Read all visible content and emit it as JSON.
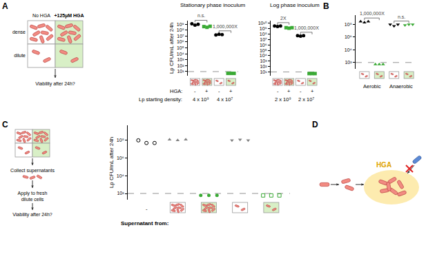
{
  "panel_labels": [
    "A",
    "B",
    "C",
    "D"
  ],
  "schematics": {
    "A": {
      "columns": [
        "No HGA",
        "+125µM HGA"
      ],
      "rows": [
        "dense",
        "dilute"
      ],
      "caption": "Viability after 24h?"
    },
    "C": {
      "steps": [
        [
          "Collect supernatants"
        ],
        [
          "Apply to fresh",
          "dilute cells"
        ],
        [
          "Viability after 24h?"
        ]
      ]
    },
    "D": {
      "label": "HGA"
    }
  },
  "chart_data": [
    {
      "type": "scatter",
      "title": "Stationary phase inoculum",
      "y_label": "Lp CFU/mL after 24h",
      "log": "y",
      "grid": false,
      "tick_labels": "y",
      "ylim": [
        2,
        4000000000
      ],
      "yticks": [
        {
          "value": 10,
          "label": "10¹"
        },
        {
          "value": 100,
          "label": "10²"
        },
        {
          "value": 1000,
          "label": "10³"
        },
        {
          "value": 10000,
          "label": "10⁴"
        },
        {
          "value": 100000,
          "label": "10⁵"
        },
        {
          "value": 1000000,
          "label": "10⁶"
        },
        {
          "value": 10000000,
          "label": "10⁷"
        },
        {
          "value": 100000000,
          "label": "10⁸"
        },
        {
          "value": 1000000000,
          "label": "10⁹"
        }
      ],
      "detection_limit": 10,
      "groups": [
        {
          "values": [
            1200000000,
            700000000,
            1000000000
          ],
          "color": "#000000",
          "marker": "circle",
          "icon": {
            "dense": true,
            "hga": false
          }
        },
        {
          "values": [
            400000000,
            300000000,
            450000000
          ],
          "color": "#3aaa35",
          "marker": "square",
          "icon": {
            "dense": true,
            "hga": true
          }
        },
        {
          "values": [
            15000000,
            20000000,
            18000000
          ],
          "color": "#000000",
          "marker": "circle",
          "icon": {
            "dense": false,
            "hga": false
          }
        },
        {
          "values": [
            5,
            5,
            5
          ],
          "color": "#3aaa35",
          "marker": "square",
          "icon": {
            "dense": false,
            "hga": true
          }
        }
      ],
      "x_rows": [
        {
          "label": "HGA:",
          "values": [
            "-",
            "+",
            "-",
            "+"
          ]
        },
        {
          "label": "Lp starting density:",
          "values": [
            "4 x 10⁹",
            "4 x 10⁷"
          ]
        }
      ],
      "comparisons": [
        {
          "groups": [
            0,
            1
          ],
          "label": "n.s."
        },
        {
          "groups": [
            2,
            3
          ],
          "label": "1,000,000X"
        }
      ]
    },
    {
      "type": "scatter",
      "title": "Log phase inoculum",
      "log": "y",
      "grid": false,
      "tick_labels": "y",
      "ylim": [
        2,
        30000000000
      ],
      "yticks": [
        {
          "value": 10,
          "label": "10¹"
        },
        {
          "value": 100,
          "label": "10²"
        },
        {
          "value": 1000,
          "label": "10³"
        },
        {
          "value": 10000,
          "label": "10⁴"
        },
        {
          "value": 100000,
          "label": "10⁵"
        },
        {
          "value": 1000000,
          "label": "10⁶"
        },
        {
          "value": 10000000,
          "label": "10⁷"
        },
        {
          "value": 100000000,
          "label": "10⁸"
        },
        {
          "value": 1000000000,
          "label": "10⁹"
        },
        {
          "value": 10000000000,
          "label": "10¹⁰"
        }
      ],
      "detection_limit": 10,
      "groups": [
        {
          "values": [
            3000000000,
            2500000000,
            3000000000
          ],
          "color": "#000000",
          "marker": "circle",
          "icon": {
            "dense": true,
            "hga": false
          }
        },
        {
          "values": [
            1500000000,
            1200000000,
            1500000000
          ],
          "color": "#3aaa35",
          "marker": "square",
          "icon": {
            "dense": true,
            "hga": true
          }
        },
        {
          "values": [
            50000000,
            40000000,
            50000000
          ],
          "color": "#000000",
          "marker": "circle",
          "icon": {
            "dense": false,
            "hga": false
          }
        },
        {
          "values": [
            5,
            5,
            5
          ],
          "color": "#3aaa35",
          "marker": "square",
          "icon": {
            "dense": false,
            "hga": true
          }
        }
      ],
      "x_rows": [
        {
          "values": [
            "-",
            "+",
            "-",
            "+"
          ]
        },
        {
          "values": [
            "2 x 10⁹",
            "2 x 10⁷"
          ]
        }
      ],
      "comparisons": [
        {
          "groups": [
            0,
            1
          ],
          "label": "2X"
        },
        {
          "groups": [
            2,
            3
          ],
          "label": "1,000,000X"
        }
      ]
    },
    {
      "type": "scatter",
      "log": "y",
      "grid": false,
      "tick_labels": "y",
      "ylim": [
        10,
        3000000000
      ],
      "yticks": [
        {
          "value": 100,
          "label": "10²"
        },
        {
          "value": 10000,
          "label": "10⁴"
        },
        {
          "value": 1000000,
          "label": "10⁶"
        },
        {
          "value": 100000000,
          "label": "10⁸"
        }
      ],
      "detection_limit": 100,
      "groups": [
        {
          "values": [
            300000000,
            200000000,
            300000000
          ],
          "color": "#000000",
          "marker": "triangle-up",
          "icon": {
            "dense": false,
            "hga": false
          }
        },
        {
          "values": [
            50,
            50,
            50
          ],
          "color": "#3aaa35",
          "marker": "triangle-up",
          "icon": {
            "dense": false,
            "hga": true
          }
        },
        {
          "values": [
            100000000,
            60000000,
            100000000
          ],
          "color": "#000000",
          "marker": "triangle-down",
          "icon": {
            "dense": false,
            "hga": false
          }
        },
        {
          "values": [
            80000000,
            100000000,
            100000000
          ],
          "color": "#3aaa35",
          "marker": "triangle-down",
          "icon": {
            "dense": false,
            "hga": true
          }
        }
      ],
      "x_rows": [
        {
          "values": [
            "Aerobic",
            "Anaerobic"
          ]
        }
      ],
      "comparisons": [
        {
          "groups": [
            0,
            1
          ],
          "label": "1,000,000X"
        },
        {
          "groups": [
            2,
            3
          ],
          "label": "n.s."
        }
      ]
    },
    {
      "type": "scatter",
      "y_label": "Lp CFU/mL after 24h",
      "x_label": "Supernatant from:",
      "log": "y",
      "grid": false,
      "tick_labels": "y",
      "ylim": [
        20,
        5000000000
      ],
      "yticks": [
        {
          "value": 100,
          "label": "10²"
        },
        {
          "value": 10000,
          "label": "10⁴"
        },
        {
          "value": 1000000,
          "label": "10⁶"
        },
        {
          "value": 100000000,
          "label": "10⁸"
        }
      ],
      "detection_limit": 100,
      "groups": [
        {
          "values": [
            100000000,
            50000000,
            50000000
          ],
          "color": "#000000",
          "marker": "circle-open",
          "icon": null
        },
        {
          "values": [
            120000000,
            100000000,
            120000000
          ],
          "color": "#808080",
          "marker": "triangle-up",
          "icon": {
            "dense": true,
            "hga": false
          }
        },
        {
          "values": [
            60,
            60,
            60
          ],
          "color": "#3aaa35",
          "marker": "circle",
          "icon": {
            "dense": true,
            "hga": true
          }
        },
        {
          "values": [
            100000000,
            120000000,
            100000000
          ],
          "color": "#808080",
          "marker": "triangle-down",
          "icon": {
            "dense": false,
            "hga": false
          }
        },
        {
          "values": [
            60,
            60,
            60
          ],
          "color": "#3aaa35",
          "marker": "square-open",
          "icon": {
            "dense": false,
            "hga": true
          }
        }
      ],
      "x_rows": [
        {
          "values": [
            "-",
            null,
            null,
            null,
            null
          ]
        }
      ]
    }
  ]
}
